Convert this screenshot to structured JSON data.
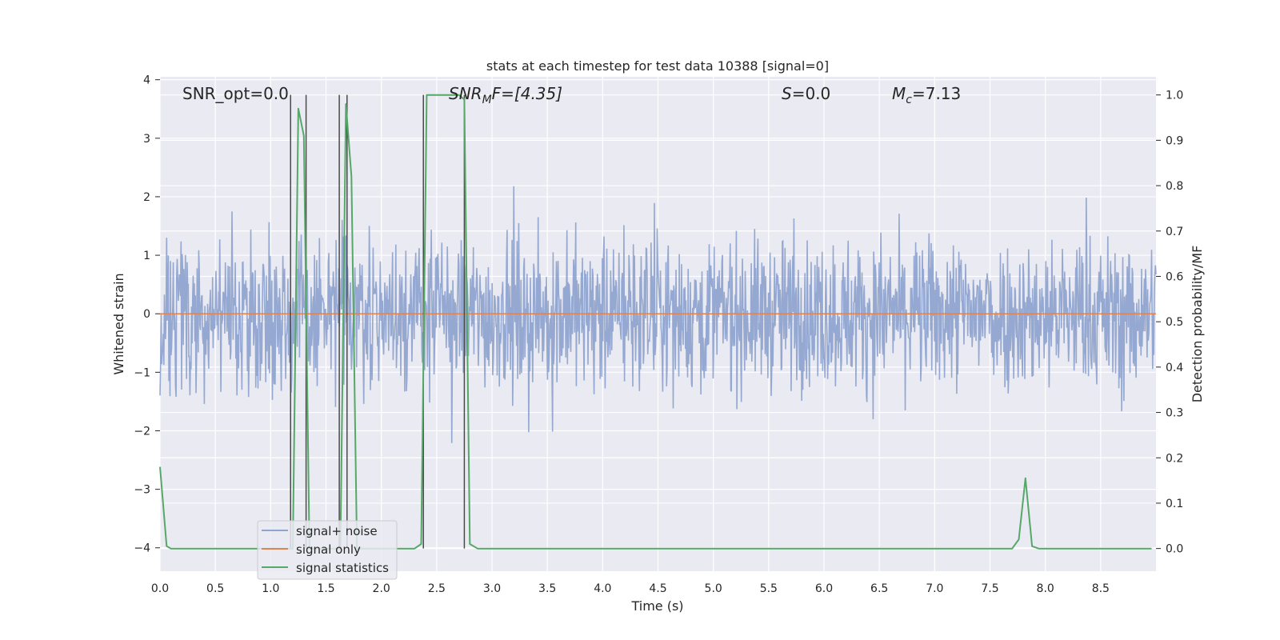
{
  "chart_data": {
    "type": "line",
    "title": "stats at each timestep for test data 10388 [signal=0]",
    "xlabel": "Time (s)",
    "ylabel_left": "Whitened strain",
    "ylabel_right": "Detection probability/MF",
    "xlim": [
      0.0,
      9.0
    ],
    "ylim_left": [
      -4.4,
      4.05
    ],
    "ylim_right": [
      -0.05,
      1.04
    ],
    "x_ticks": [
      "0.0",
      "0.5",
      "1.0",
      "1.5",
      "2.0",
      "2.5",
      "3.0",
      "3.5",
      "4.0",
      "4.5",
      "5.0",
      "5.5",
      "6.0",
      "6.5",
      "7.0",
      "7.5",
      "8.0",
      "8.5"
    ],
    "y_left_ticks": [
      "4",
      "3",
      "2",
      "1",
      "0",
      "−1",
      "−2",
      "−3",
      "−4"
    ],
    "y_right_ticks": [
      "1.0",
      "0.9",
      "0.8",
      "0.7",
      "0.6",
      "0.5",
      "0.4",
      "0.3",
      "0.2",
      "0.1",
      "0.0"
    ],
    "grid": true,
    "annotations": {
      "snr_opt": "SNR_opt=0.0",
      "snr_mf_main": "SNR",
      "snr_mf_sub": "M",
      "snr_mf_rest": "F=[4.35]",
      "s_italic": "S",
      "s_rest": "=0.0",
      "mc_main": "M",
      "mc_sub": "c",
      "mc_rest": "=7.13"
    },
    "legend": {
      "placement": "lower-left",
      "entries": [
        "signal+ noise",
        "signal only",
        "signal statistics"
      ]
    },
    "series": [
      {
        "name": "signal+ noise",
        "axis": "left",
        "color": "#8fa4cf",
        "description_values": "whitened noise, approx. uniform band between about -2.5 and 2.5 with peaks to about ±3.5",
        "amplitude_range": [
          -3.85,
          3.7
        ]
      },
      {
        "name": "signal only",
        "axis": "left",
        "color": "#dd8452",
        "x": [
          0.0,
          9.0
        ],
        "y": [
          0.0,
          0.0
        ]
      },
      {
        "name": "signal statistics",
        "axis": "right",
        "color": "#55a868",
        "x": [
          0.0,
          0.06,
          0.1,
          0.5,
          1.0,
          1.1,
          1.15,
          1.2,
          1.25,
          1.3,
          1.35,
          1.4,
          1.45,
          1.5,
          1.55,
          1.6,
          1.63,
          1.68,
          1.73,
          1.78,
          1.85,
          2.0,
          2.3,
          2.36,
          2.41,
          2.5,
          2.6,
          2.7,
          2.75,
          2.8,
          2.87,
          3.5,
          5.0,
          7.0,
          7.7,
          7.76,
          7.82,
          7.88,
          7.94,
          8.5,
          8.96
        ],
        "y": [
          0.18,
          0.005,
          0.0,
          0.0,
          0.0,
          0.0,
          0.0,
          0.0,
          0.97,
          0.91,
          0.0,
          0.0,
          0.0,
          0.0,
          0.0,
          0.0,
          0.0,
          0.98,
          0.82,
          0.0,
          0.0,
          0.0,
          0.0,
          0.01,
          1.0,
          1.0,
          1.0,
          1.0,
          0.99,
          0.01,
          0.0,
          0.0,
          0.0,
          0.0,
          0.0,
          0.02,
          0.155,
          0.005,
          0.0,
          0.0,
          0.0
        ]
      }
    ],
    "vertical_markers": {
      "color": "#4a4a4a",
      "x": [
        1.18,
        1.32,
        1.62,
        1.69,
        2.38,
        2.75
      ],
      "y_right_range": [
        0.0,
        1.0
      ]
    }
  }
}
